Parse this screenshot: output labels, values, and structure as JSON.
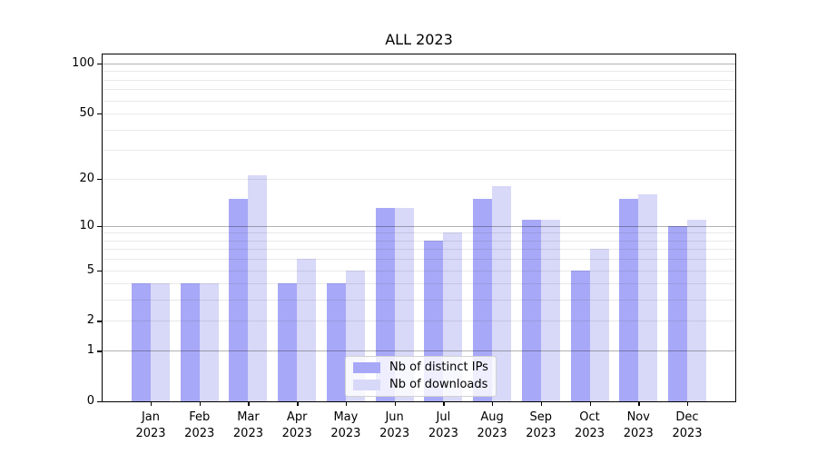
{
  "title": "ALL 2023",
  "colors": {
    "bar_distinct_ips": "#a8a8f8",
    "bar_downloads": "#d8d8f8",
    "major_grid": "rgba(0,0,0,0.30)",
    "minor_grid": "rgba(0,0,0,0.085)",
    "axis": "#000000",
    "background": "#ffffff"
  },
  "chart_data": {
    "type": "bar",
    "title": "ALL 2023",
    "categories": [
      "Jan 2023",
      "Feb 2023",
      "Mar 2023",
      "Apr 2023",
      "May 2023",
      "Jun 2023",
      "Jul 2023",
      "Aug 2023",
      "Sep 2023",
      "Oct 2023",
      "Nov 2023",
      "Dec 2023"
    ],
    "x_months": [
      "Jan",
      "Feb",
      "Mar",
      "Apr",
      "May",
      "Jun",
      "Jul",
      "Aug",
      "Sep",
      "Oct",
      "Nov",
      "Dec"
    ],
    "x_year": "2023",
    "series": [
      {
        "name": "Nb of distinct IPs",
        "color": "#a8a8f8",
        "values": [
          4,
          4,
          15,
          4,
          4,
          13,
          8,
          15,
          11,
          5,
          15,
          10
        ]
      },
      {
        "name": "Nb of downloads",
        "color": "#d8d8f8",
        "values": [
          4,
          4,
          21,
          6,
          5,
          13,
          9,
          18,
          11,
          7,
          16,
          11
        ]
      }
    ],
    "yscale": "log1p",
    "ylim": [
      0,
      113
    ],
    "yticks": [
      0,
      1,
      2,
      5,
      10,
      20,
      50,
      100
    ],
    "major_gridlines": [
      1,
      10,
      100
    ],
    "minor_gridlines": [
      2,
      3,
      4,
      5,
      6,
      7,
      8,
      9,
      20,
      30,
      40,
      50,
      60,
      70,
      80,
      90
    ],
    "grid": "on",
    "legend_position": "lower center"
  }
}
